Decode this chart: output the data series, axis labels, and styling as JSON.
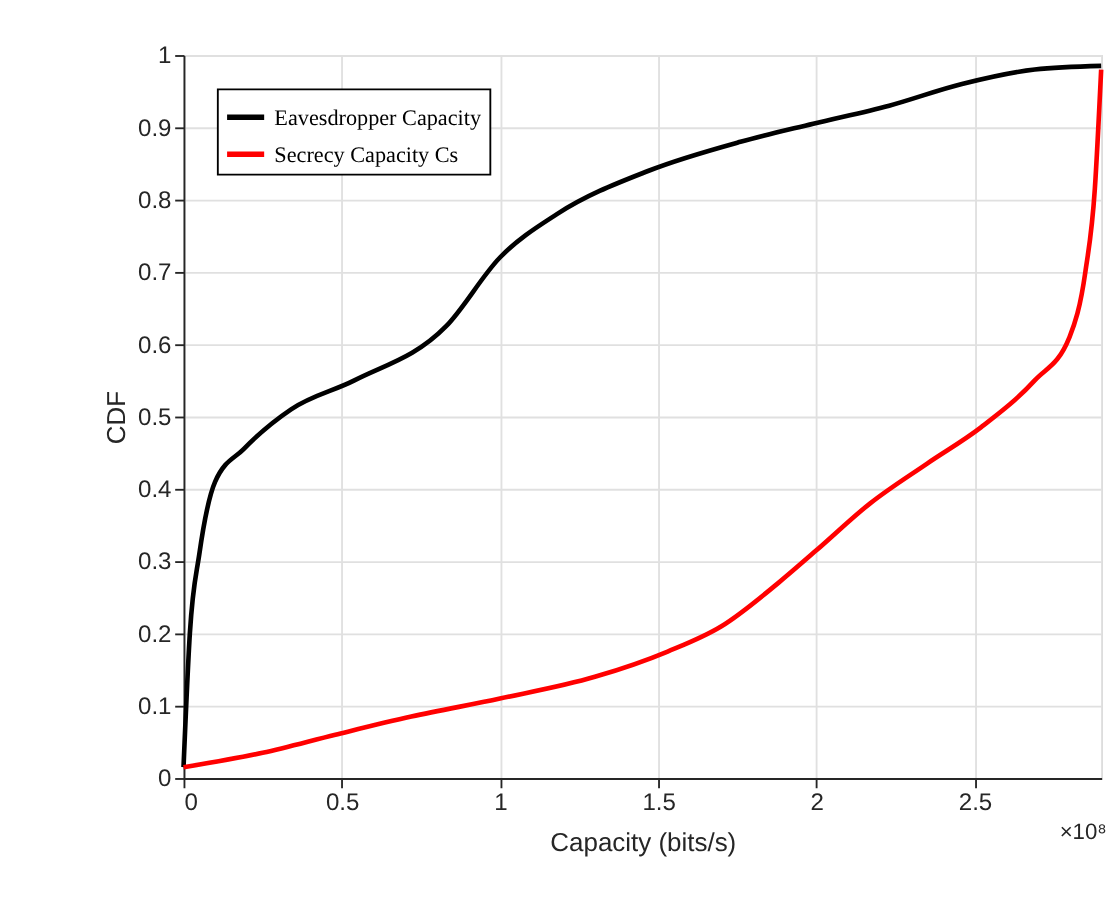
{
  "chart_data": {
    "type": "line",
    "xlabel": "Capacity (bits/s)",
    "ylabel": "CDF",
    "annotations": [
      "×10⁸"
    ],
    "xlim": [
      0,
      2.9
    ],
    "xticks": [
      0,
      0.5,
      1,
      1.5,
      2,
      2.5
    ],
    "ylim": [
      0,
      1
    ],
    "yticks": [
      0,
      0.1,
      0.2,
      0.3,
      0.4,
      0.5,
      0.6,
      0.7,
      0.8,
      0.9,
      1
    ],
    "grid": true,
    "legend": "top left",
    "line_style": "solid",
    "marker": "none",
    "series": [
      {
        "name": "Eavesdropper Capacity",
        "color": "#000000",
        "x": [
          0,
          0.02,
          0.05,
          0.1,
          0.19,
          0.34,
          0.54,
          0.83,
          1.0,
          1.18,
          1.47,
          1.76,
          1.99,
          2.23,
          2.46,
          2.69,
          2.9
        ],
        "values": [
          0.015,
          0.2,
          0.31,
          0.41,
          0.455,
          0.51,
          0.55,
          0.625,
          0.72,
          0.78,
          0.84,
          0.88,
          0.905,
          0.93,
          0.96,
          0.98,
          0.985
        ]
      },
      {
        "name": "Secrecy Capacity Cs",
        "color": "#ff0000",
        "x": [
          0,
          0.25,
          0.48,
          0.72,
          1.0,
          1.3,
          1.53,
          1.7,
          1.88,
          2.0,
          2.17,
          2.35,
          2.52,
          2.69,
          2.8,
          2.85,
          2.88,
          2.9
        ],
        "values": [
          0.015,
          0.035,
          0.06,
          0.085,
          0.11,
          0.14,
          0.175,
          0.21,
          0.27,
          0.315,
          0.38,
          0.435,
          0.485,
          0.55,
          0.61,
          0.7,
          0.815,
          0.98
        ]
      }
    ]
  }
}
